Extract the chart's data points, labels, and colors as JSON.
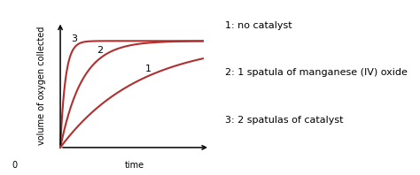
{
  "background_color": "#ffffff",
  "curve_color": "#b03030",
  "curve_linewidth": 1.5,
  "xlabel": "time",
  "ylabel": "volume of oxygen collected",
  "origin_label": "0",
  "curve1_label": "1",
  "curve2_label": "2",
  "curve3_label": "3",
  "legend_lines": [
    "1: no catalyst",
    "2: 1 spatula of manganese (IV) oxide",
    "3: 2 spatulas of catalyst"
  ],
  "legend_fontsize": 8.0,
  "axis_label_fontsize": 7.0,
  "curve_label_fontsize": 8.0,
  "plateau": 0.82,
  "k1": 0.18,
  "k2": 0.65,
  "k3": 2.8,
  "xmax": 10.0
}
